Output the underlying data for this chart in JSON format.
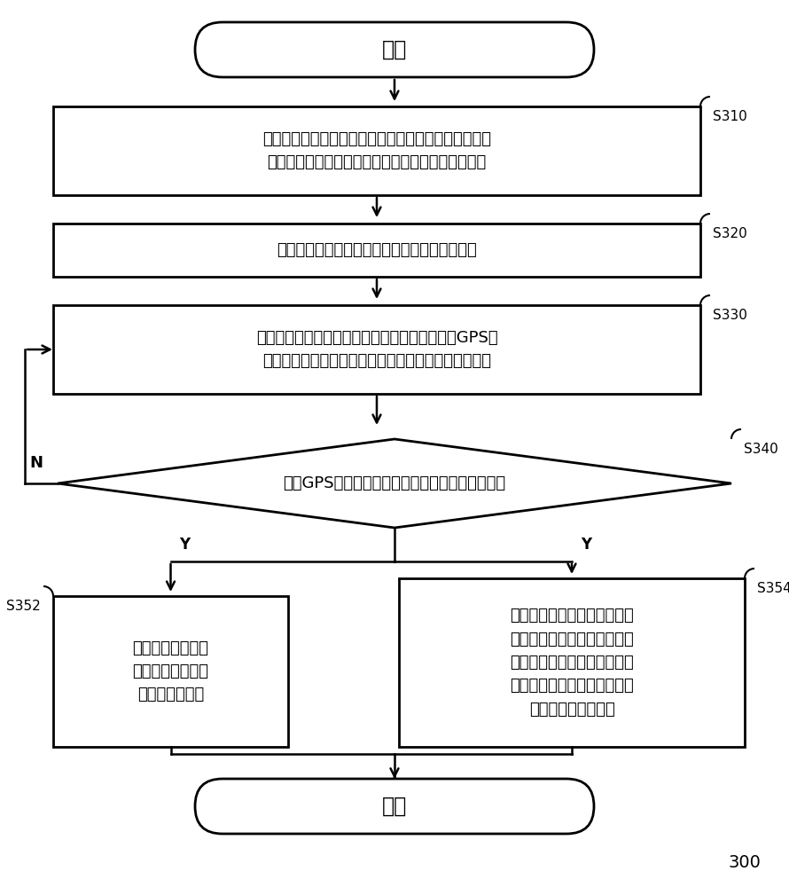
{
  "bg_color": "#ffffff",
  "line_color": "#000000",
  "text_color": "#000000",
  "title_300": "300",
  "start_text": "开始",
  "end_text": "结束",
  "s310_text": "在移动终端的安全预警模式下，根据用户的输入确定当\n前行驶状态，其中行驶状态包括骑行状态和步行状态",
  "s320_text": "根据用户输入的出发地和目的地，规划行驶路径",
  "s330_text": "实时获取行驶状态数据，其中行驶状态数据包括GPS位\n置、行驶距离、行驶时间、加速度数据中的一个或多个",
  "s340_text": "根据GPS位置判断用户是否偏离所规划的行驶路径",
  "s352_text": "若判断在步行状态\n下行驶路径偏离，\n则进行预警提示",
  "s354_text": "若判断在骑行状态下行驶路径\n偏离，则根据行驶距离、行驶\n时间和加速度数据判断当前行\n驶是否异常，若判断当前行驶\n异常则进行预警提示",
  "s310_label": "S310",
  "s320_label": "S320",
  "s330_label": "S330",
  "s340_label": "S340",
  "s352_label": "S352",
  "s354_label": "S354",
  "label_n": "N",
  "label_y1": "Y",
  "label_y2": "Y"
}
